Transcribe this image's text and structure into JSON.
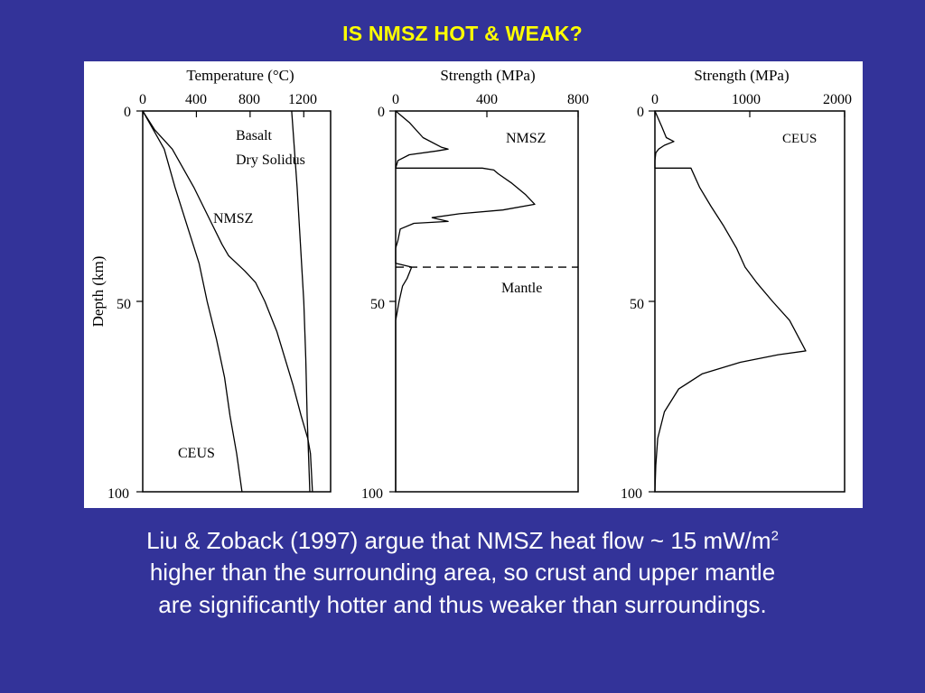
{
  "slide": {
    "title": "IS NMSZ HOT & WEAK?",
    "caption_line1_pre": "Liu & Zoback  (1997) argue that NMSZ heat flow ~ 15 mW/m",
    "caption_line1_sup": "2",
    "caption_line2": "higher than the surrounding area, so crust and upper mantle",
    "caption_line3": "are significantly hotter and thus weaker than surroundings."
  },
  "chart_data": [
    {
      "type": "line",
      "title": "",
      "xlabel": "Temperature (°C)",
      "ylabel": "Depth (km)",
      "xlim": [
        0,
        1400
      ],
      "ylim": [
        100,
        0
      ],
      "x_ticks": [
        "0",
        "400",
        "800",
        "1200"
      ],
      "y_ticks": [
        "0",
        "50",
        "100"
      ],
      "annotations": [
        "Basalt",
        "Dry Solidus",
        "NMSZ",
        "CEUS"
      ],
      "series": [
        {
          "name": "Basalt Dry Solidus",
          "points": [
            [
              1110,
              0
            ],
            [
              1130,
              10
            ],
            [
              1150,
              20
            ],
            [
              1175,
              35
            ],
            [
              1200,
              50
            ],
            [
              1215,
              65
            ],
            [
              1225,
              80
            ],
            [
              1235,
              90
            ],
            [
              1245,
              100
            ]
          ]
        },
        {
          "name": "NMSZ",
          "points": [
            [
              0,
              0
            ],
            [
              90,
              5
            ],
            [
              220,
              10
            ],
            [
              380,
              20
            ],
            [
              520,
              30
            ],
            [
              590,
              35
            ],
            [
              640,
              38
            ],
            [
              760,
              42
            ],
            [
              840,
              45
            ],
            [
              910,
              50
            ],
            [
              1000,
              58
            ],
            [
              1060,
              65
            ],
            [
              1120,
              72
            ],
            [
              1180,
              80
            ],
            [
              1230,
              86
            ],
            [
              1250,
              90
            ],
            [
              1265,
              100
            ]
          ]
        },
        {
          "name": "CEUS",
          "points": [
            [
              0,
              0
            ],
            [
              80,
              5
            ],
            [
              160,
              10
            ],
            [
              240,
              20
            ],
            [
              330,
              30
            ],
            [
              420,
              40
            ],
            [
              480,
              50
            ],
            [
              550,
              60
            ],
            [
              610,
              70
            ],
            [
              650,
              80
            ],
            [
              700,
              90
            ],
            [
              740,
              100
            ]
          ]
        }
      ]
    },
    {
      "type": "line",
      "title": "",
      "xlabel": "Strength (MPa)",
      "ylabel": "",
      "xlim": [
        0,
        800
      ],
      "ylim": [
        100,
        0
      ],
      "x_ticks": [
        "0",
        "400",
        "800"
      ],
      "y_ticks": [
        "0",
        "50",
        "100"
      ],
      "annotations": [
        "NMSZ",
        "Mantle"
      ],
      "moho_depth": 41,
      "series": [
        {
          "name": "NMSZ",
          "points": [
            [
              0,
              0
            ],
            [
              60,
              3
            ],
            [
              120,
              7
            ],
            [
              200,
              9.5
            ],
            [
              230,
              10
            ],
            [
              180,
              10.5
            ],
            [
              60,
              11.5
            ],
            [
              10,
              13
            ],
            [
              0,
              15
            ],
            [
              380,
              15
            ],
            [
              430,
              15.5
            ],
            [
              450,
              16.5
            ],
            [
              510,
              19
            ],
            [
              570,
              22
            ],
            [
              610,
              24.5
            ],
            [
              470,
              26
            ],
            [
              280,
              27
            ],
            [
              160,
              28
            ],
            [
              230,
              29
            ],
            [
              80,
              29.5
            ],
            [
              20,
              31
            ],
            [
              10,
              34
            ],
            [
              0,
              36
            ],
            [
              0,
              40
            ],
            [
              70,
              41
            ],
            [
              50,
              44
            ],
            [
              30,
              46
            ],
            [
              15,
              50
            ],
            [
              0,
              55
            ],
            [
              0,
              100
            ]
          ]
        }
      ]
    },
    {
      "type": "line",
      "title": "",
      "xlabel": "Strength (MPa)",
      "ylabel": "",
      "xlim": [
        0,
        2000
      ],
      "ylim": [
        100,
        0
      ],
      "x_ticks": [
        "0",
        "1000",
        "2000"
      ],
      "y_ticks": [
        "0",
        "50",
        "100"
      ],
      "annotations": [
        "CEUS"
      ],
      "series": [
        {
          "name": "CEUS",
          "points": [
            [
              0,
              0
            ],
            [
              70,
              4
            ],
            [
              120,
              7
            ],
            [
              200,
              8
            ],
            [
              100,
              9
            ],
            [
              40,
              10
            ],
            [
              10,
              11
            ],
            [
              0,
              13
            ],
            [
              0,
              15
            ],
            [
              380,
              15
            ],
            [
              470,
              20
            ],
            [
              590,
              25
            ],
            [
              720,
              30
            ],
            [
              860,
              36
            ],
            [
              950,
              41
            ],
            [
              1070,
              45
            ],
            [
              1240,
              50
            ],
            [
              1420,
              55
            ],
            [
              1590,
              63
            ],
            [
              1300,
              64
            ],
            [
              900,
              66
            ],
            [
              500,
              69
            ],
            [
              250,
              73
            ],
            [
              100,
              79
            ],
            [
              30,
              86
            ],
            [
              10,
              93
            ],
            [
              0,
              100
            ]
          ]
        }
      ]
    }
  ]
}
